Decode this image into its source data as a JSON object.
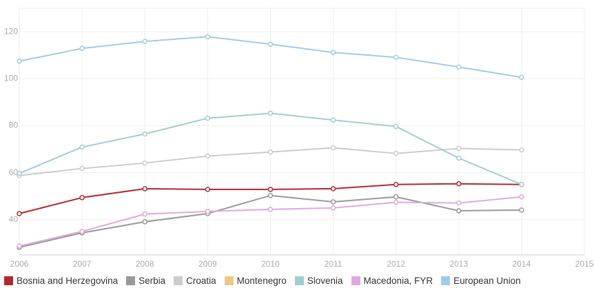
{
  "chart_data": {
    "type": "line",
    "x": [
      2006,
      2007,
      2008,
      2009,
      2010,
      2011,
      2012,
      2013,
      2014
    ],
    "xlim": [
      2006,
      2015
    ],
    "xticks": [
      2006,
      2007,
      2008,
      2009,
      2010,
      2011,
      2012,
      2013,
      2014,
      2015
    ],
    "ylim": [
      25,
      130
    ],
    "yticks": [
      40,
      60,
      80,
      100,
      120
    ],
    "grid": true,
    "series": [
      {
        "name": "Bosnia and Herzegovina",
        "color": "#b2282e",
        "values": [
          42.6,
          49.4,
          53.2,
          52.9,
          52.9,
          53.2,
          55,
          55.3,
          55
        ]
      },
      {
        "name": "Serbia",
        "color": "#999999",
        "values": [
          28.2,
          34.4,
          39.1,
          42.6,
          50.3,
          47.6,
          49.7,
          43.8,
          44.1
        ]
      },
      {
        "name": "Croatia",
        "color": "#cccccc",
        "values": [
          58.8,
          61.8,
          64.1,
          67.1,
          68.8,
          70.6,
          68.2,
          70.3,
          69.7
        ]
      },
      {
        "name": "Montenegro",
        "color": "#f0c987",
        "values": [
          null,
          null,
          null,
          null,
          null,
          null,
          null,
          null,
          null
        ]
      },
      {
        "name": "Slovenia",
        "color": "#9ecfd0",
        "values": [
          59.7,
          70.9,
          76.5,
          83.2,
          85.3,
          82.4,
          79.7,
          66.2,
          55
        ]
      },
      {
        "name": "Macedonia, FYR",
        "color": "#e0a8e0",
        "values": [
          28.8,
          35,
          42.4,
          43.5,
          44.4,
          45,
          47.4,
          47.1,
          49.7
        ]
      },
      {
        "name": "European Union",
        "color": "#9fcbea",
        "values": [
          107.5,
          112.9,
          115.9,
          117.9,
          114.7,
          111.2,
          109.1,
          105,
          100.6
        ]
      }
    ]
  }
}
